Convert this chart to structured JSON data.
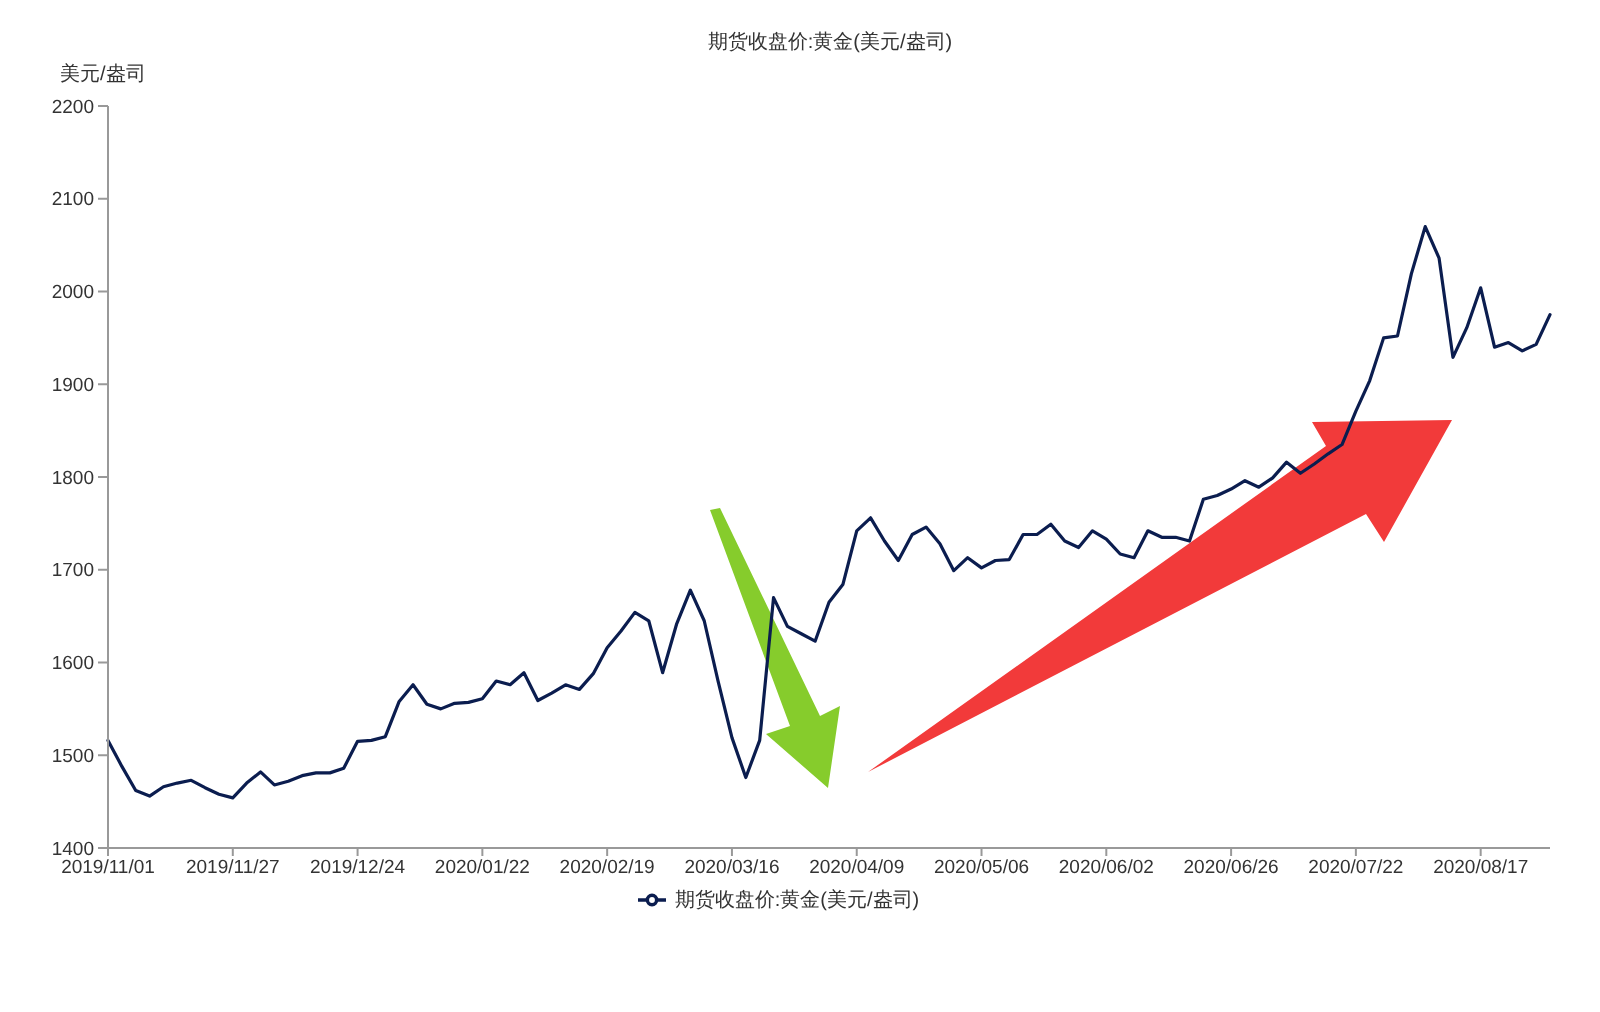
{
  "chart_data": {
    "type": "line",
    "title": "期货收盘价:黄金(美元/盎司)",
    "ylabel": "美元/盎司",
    "categories": [
      "2019/11/01",
      null,
      null,
      null,
      null,
      null,
      null,
      null,
      null,
      "2019/11/27",
      null,
      null,
      null,
      null,
      null,
      null,
      null,
      null,
      "2019/12/24",
      null,
      null,
      null,
      null,
      null,
      null,
      null,
      null,
      "2020/01/22",
      null,
      null,
      null,
      null,
      null,
      null,
      null,
      null,
      "2020/02/19",
      null,
      null,
      null,
      null,
      null,
      null,
      null,
      null,
      "2020/03/16",
      null,
      null,
      null,
      null,
      null,
      null,
      null,
      null,
      "2020/04/09",
      null,
      null,
      null,
      null,
      null,
      null,
      null,
      null,
      "2020/05/06",
      null,
      null,
      null,
      null,
      null,
      null,
      null,
      null,
      "2020/06/02",
      null,
      null,
      null,
      null,
      null,
      null,
      null,
      null,
      "2020/06/26",
      null,
      null,
      null,
      null,
      null,
      null,
      null,
      null,
      "2020/07/22",
      null,
      null,
      null,
      null,
      null,
      null,
      null,
      null,
      "2020/08/17",
      null,
      null,
      null,
      null,
      null
    ],
    "series": [
      {
        "name": "期货收盘价:黄金(美元/盎司)",
        "color": "#0b1d4f",
        "values": [
          1516,
          1488,
          1462,
          1456,
          1466,
          1470,
          1473,
          1465,
          1458,
          1454,
          1470,
          1482,
          1468,
          1472,
          1478,
          1481,
          1481,
          1486,
          1515,
          1516,
          1520,
          1558,
          1576,
          1555,
          1550,
          1556,
          1557,
          1561,
          1580,
          1576,
          1589,
          1559,
          1567,
          1576,
          1571,
          1588,
          1616,
          1634,
          1654,
          1645,
          1589,
          1641,
          1678,
          1645,
          1580,
          1519,
          1476,
          1516,
          1670,
          1639,
          1631,
          1623,
          1665,
          1684,
          1742,
          1756,
          1731,
          1710,
          1738,
          1746,
          1728,
          1699,
          1713,
          1702,
          1710,
          1711,
          1738,
          1738,
          1749,
          1731,
          1724,
          1742,
          1733,
          1717,
          1713,
          1742,
          1735,
          1735,
          1731,
          1776,
          1780,
          1787,
          1796,
          1789,
          1799,
          1816,
          1804,
          1814,
          1825,
          1835,
          1871,
          1904,
          1950,
          1952,
          2019,
          2070,
          2036,
          1929,
          1961,
          2004,
          1940,
          1945,
          1936,
          1943,
          1975
        ]
      }
    ],
    "ylim": [
      1400,
      2200
    ],
    "yticks": [
      1400,
      1500,
      1600,
      1700,
      1800,
      1900,
      2000,
      2100,
      2200
    ],
    "grid": false,
    "legend": "bottom",
    "marker": "none",
    "line_style": "solid"
  }
}
